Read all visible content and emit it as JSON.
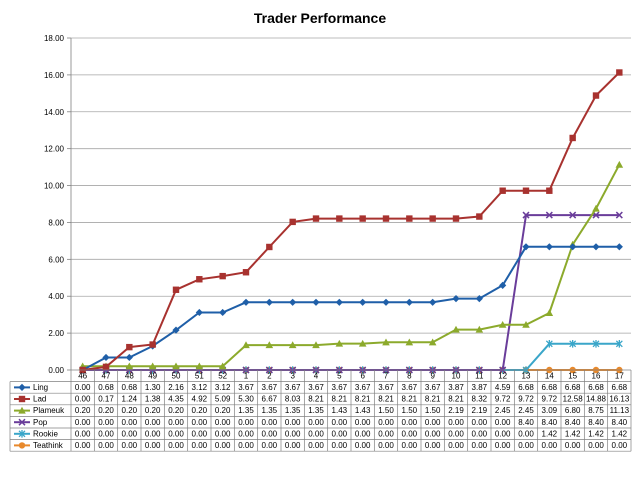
{
  "chart_data": {
    "type": "line",
    "title": "Trader Performance",
    "categories": [
      "46",
      "47",
      "48",
      "49",
      "50",
      "51",
      "52",
      "1",
      "2",
      "3",
      "4",
      "5",
      "6",
      "7",
      "8",
      "9",
      "10",
      "11",
      "12",
      "13",
      "14",
      "15",
      "16",
      "17"
    ],
    "ylim": [
      0,
      18
    ],
    "yticks": [
      "0.00",
      "2.00",
      "4.00",
      "6.00",
      "8.00",
      "10.00",
      "12.00",
      "14.00",
      "16.00",
      "18.00"
    ],
    "grid": "horizontal",
    "legend": "data-table",
    "series": [
      {
        "name": "Ling",
        "color": "#1F5FA8",
        "marker": "diamond",
        "values": [
          0.0,
          0.68,
          0.68,
          1.3,
          2.16,
          3.12,
          3.12,
          3.67,
          3.67,
          3.67,
          3.67,
          3.67,
          3.67,
          3.67,
          3.67,
          3.67,
          3.87,
          3.87,
          4.59,
          6.68,
          6.68,
          6.68,
          6.68,
          6.68
        ],
        "labels": [
          "0.00",
          "0.68",
          "0.68",
          "1.30",
          "2.16",
          "3.12",
          "3.12",
          "3.67",
          "3.67",
          "3.67",
          "3.67",
          "3.67",
          "3.67",
          "3.67",
          "3.67",
          "3.67",
          "3.87",
          "3.87",
          "4.59",
          "6.68",
          "6.68",
          "6.68",
          "6.68",
          "6.68"
        ]
      },
      {
        "name": "Lad",
        "color": "#A8322F",
        "marker": "square",
        "values": [
          0.0,
          0.17,
          1.24,
          1.38,
          4.35,
          4.92,
          5.09,
          5.3,
          6.67,
          8.03,
          8.21,
          8.21,
          8.21,
          8.21,
          8.21,
          8.21,
          8.21,
          8.32,
          9.72,
          9.72,
          9.72,
          12.58,
          14.88,
          16.13
        ],
        "labels": [
          "0.00",
          "0.17",
          "1.24",
          "1.38",
          "4.35",
          "4.92",
          "5.09",
          "5.30",
          "6.67",
          "8.03",
          "8.21",
          "8.21",
          "8.21",
          "8.21",
          "8.21",
          "8.21",
          "8.21",
          "8.32",
          "9.72",
          "9.72",
          "9.72",
          "12.58",
          "14.88",
          "16.13"
        ]
      },
      {
        "name": "Plameuk",
        "color": "#8CAA2C",
        "marker": "triangle",
        "values": [
          0.2,
          0.2,
          0.2,
          0.2,
          0.2,
          0.2,
          0.2,
          1.35,
          1.35,
          1.35,
          1.35,
          1.43,
          1.43,
          1.5,
          1.5,
          1.5,
          2.19,
          2.19,
          2.45,
          2.45,
          3.09,
          6.8,
          8.75,
          11.13
        ],
        "labels": [
          "0.20",
          "0.20",
          "0.20",
          "0.20",
          "0.20",
          "0.20",
          "0.20",
          "1.35",
          "1.35",
          "1.35",
          "1.35",
          "1.43",
          "1.43",
          "1.50",
          "1.50",
          "1.50",
          "2.19",
          "2.19",
          "2.45",
          "2.45",
          "3.09",
          "6.80",
          "8.75",
          "11.13"
        ]
      },
      {
        "name": "Pop",
        "color": "#6A3D9A",
        "marker": "x",
        "values": [
          0.0,
          0.0,
          0.0,
          0.0,
          0.0,
          0.0,
          0.0,
          0.0,
          0.0,
          0.0,
          0.0,
          0.0,
          0.0,
          0.0,
          0.0,
          0.0,
          0.0,
          0.0,
          0.0,
          8.4,
          8.4,
          8.4,
          8.4,
          8.4
        ],
        "labels": [
          "0.00",
          "0.00",
          "0.00",
          "0.00",
          "0.00",
          "0.00",
          "0.00",
          "0.00",
          "0.00",
          "0.00",
          "0.00",
          "0.00",
          "0.00",
          "0.00",
          "0.00",
          "0.00",
          "0.00",
          "0.00",
          "0.00",
          "8.40",
          "8.40",
          "8.40",
          "8.40",
          "8.40"
        ]
      },
      {
        "name": "Rookie",
        "color": "#3AA6C9",
        "marker": "star",
        "values": [
          0.0,
          0.0,
          0.0,
          0.0,
          0.0,
          0.0,
          0.0,
          0.0,
          0.0,
          0.0,
          0.0,
          0.0,
          0.0,
          0.0,
          0.0,
          0.0,
          0.0,
          0.0,
          0.0,
          0.0,
          1.42,
          1.42,
          1.42,
          1.42
        ],
        "labels": [
          "0.00",
          "0.00",
          "0.00",
          "0.00",
          "0.00",
          "0.00",
          "0.00",
          "0.00",
          "0.00",
          "0.00",
          "0.00",
          "0.00",
          "0.00",
          "0.00",
          "0.00",
          "0.00",
          "0.00",
          "0.00",
          "0.00",
          "0.00",
          "1.42",
          "1.42",
          "1.42",
          "1.42"
        ]
      },
      {
        "name": "Teathink",
        "color": "#E8892C",
        "marker": "circle",
        "values": [
          0.0,
          0.0,
          0.0,
          0.0,
          0.0,
          0.0,
          0.0,
          0.0,
          0.0,
          0.0,
          0.0,
          0.0,
          0.0,
          0.0,
          0.0,
          0.0,
          0.0,
          0.0,
          0.0,
          0.0,
          0.0,
          0.0,
          0.0,
          0.0
        ],
        "labels": [
          "0.00",
          "0.00",
          "0.00",
          "0.00",
          "0.00",
          "0.00",
          "0.00",
          "0.00",
          "0.00",
          "0.00",
          "0.00",
          "0.00",
          "0.00",
          "0.00",
          "0.00",
          "0.00",
          "0.00",
          "0.00",
          "0.00",
          "0.00",
          "0.00",
          "0.00",
          "0.00",
          "0.00"
        ]
      }
    ]
  }
}
